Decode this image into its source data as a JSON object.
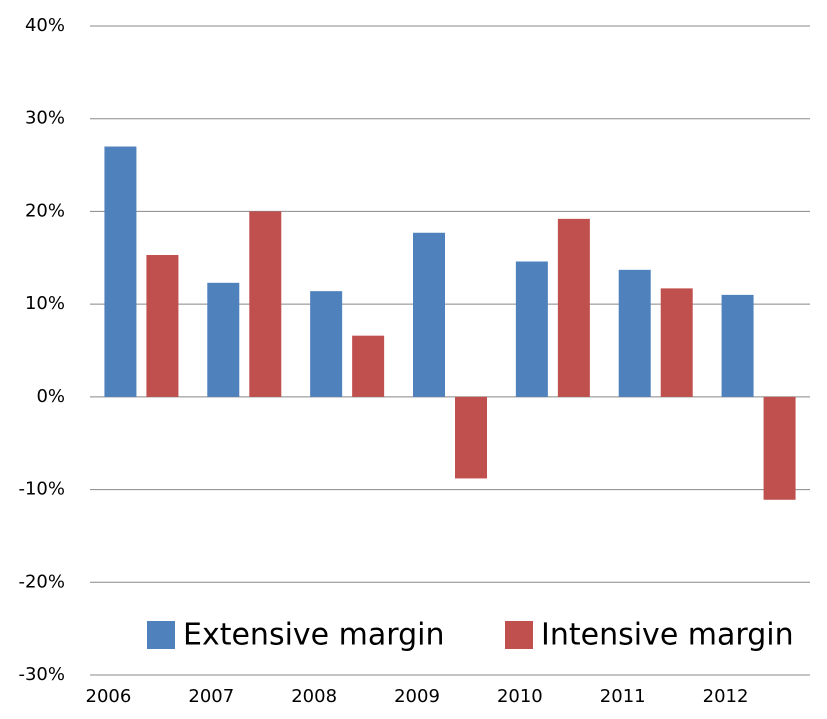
{
  "chart_data": {
    "type": "bar",
    "categories": [
      "2006",
      "2007",
      "2008",
      "2009",
      "2010",
      "2011",
      "2012"
    ],
    "series": [
      {
        "name": "Extensive margin",
        "color": "#4f81bd",
        "values": [
          27.0,
          12.3,
          11.4,
          17.7,
          14.6,
          13.7,
          11.0
        ]
      },
      {
        "name": "Intensive margin",
        "color": "#c0504d",
        "values": [
          15.3,
          20.0,
          6.6,
          -8.8,
          19.2,
          11.7,
          -11.1
        ]
      }
    ],
    "ylim": [
      -30,
      40
    ],
    "yticks": [
      {
        "value": -30,
        "label": "-30%"
      },
      {
        "value": -20,
        "label": "-20%"
      },
      {
        "value": -10,
        "label": "-10%"
      },
      {
        "value": 0,
        "label": "0%"
      },
      {
        "value": 10,
        "label": "10%"
      },
      {
        "value": 20,
        "label": "20%"
      },
      {
        "value": 30,
        "label": "30%"
      },
      {
        "value": 40,
        "label": "40%"
      }
    ],
    "grid": true,
    "legend": "bottom"
  }
}
